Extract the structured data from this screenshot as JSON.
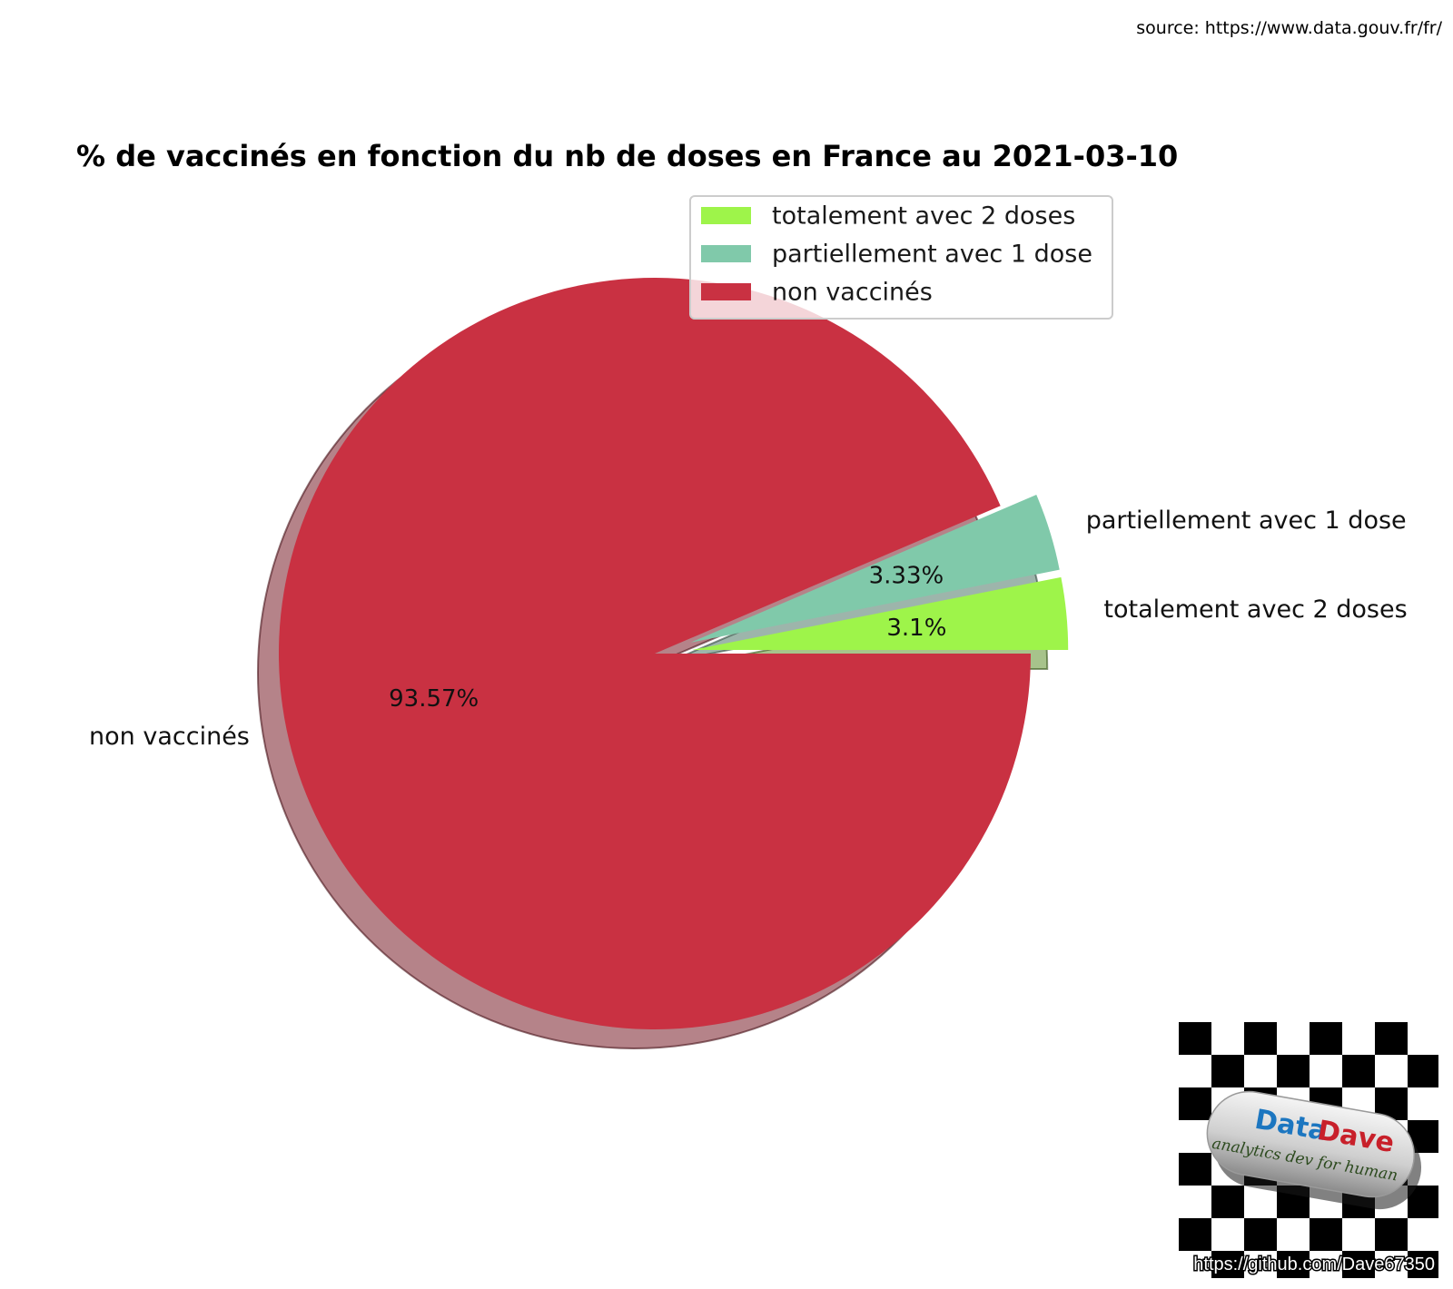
{
  "source_note": "source: https://www.data.gouv.fr/fr/",
  "chart_data": {
    "type": "pie",
    "title": "% de vaccinés en fonction du nb de doses en France au 2021-03-10",
    "start_angle_deg": 0,
    "direction": "counterclockwise",
    "exploded": true,
    "shadow": true,
    "slices": [
      {
        "label": "totalement avec 2 doses",
        "value": 3.1,
        "pct_label": "3.1%",
        "color": "#9ef44a",
        "explode": 0.1
      },
      {
        "label": "partiellement avec 1 dose",
        "value": 3.33,
        "pct_label": "3.33%",
        "color": "#80c9aa",
        "explode": 0.1
      },
      {
        "label": "non vaccinés",
        "value": 93.57,
        "pct_label": "93.57%",
        "color": "#c93142",
        "explode": 0
      }
    ],
    "legend": {
      "placement": "top-right",
      "entries": [
        "totalement avec 2 doses",
        "partiellement avec 1 dose",
        "non vaccinés"
      ]
    }
  },
  "watermark": {
    "brand_part1": "Data",
    "brand_part2": "Dave",
    "tagline": "analytics dev for human",
    "url": "https://github.com/Dave67350"
  }
}
